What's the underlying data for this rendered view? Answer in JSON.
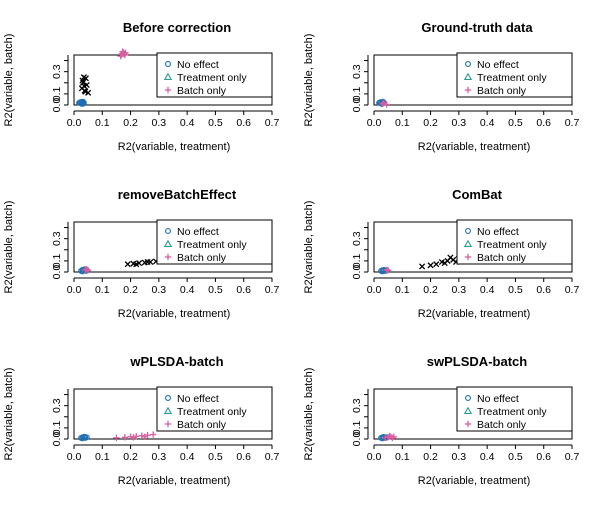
{
  "chart_data": [
    {
      "type": "scatter",
      "title": "Before correction",
      "xlabel": "R2(variable, treatment)",
      "ylabel": "R2(variable, batch)",
      "xlim": [
        0,
        0.7
      ],
      "ylim": [
        0,
        0.45
      ],
      "xticks": [
        "0.0",
        "0.1",
        "0.2",
        "0.3",
        "0.4",
        "0.5",
        "0.6",
        "0.7"
      ],
      "yticks": [
        "0.0",
        "0.1",
        "0.3"
      ],
      "legend": [
        "No effect",
        "Treatment only",
        "Batch only"
      ],
      "legend_position": "right",
      "series": [
        {
          "name": "No effect",
          "points": [
            [
              0.02,
              0.02
            ],
            [
              0.025,
              0.015
            ],
            [
              0.03,
              0.02
            ],
            [
              0.035,
              0.02
            ],
            [
              0.022,
              0.025
            ],
            [
              0.028,
              0.01
            ],
            [
              0.032,
              0.03
            ],
            [
              0.018,
              0.02
            ],
            [
              0.027,
              0.028
            ],
            [
              0.033,
              0.012
            ]
          ]
        },
        {
          "name": "Treatment only",
          "points": []
        },
        {
          "name": "Batch only",
          "points": [
            [
              0.17,
              0.46
            ],
            [
              0.175,
              0.47
            ],
            [
              0.18,
              0.45
            ],
            [
              0.165,
              0.44
            ],
            [
              0.172,
              0.48
            ],
            [
              0.178,
              0.46
            ],
            [
              0.168,
              0.455
            ],
            [
              0.182,
              0.47
            ]
          ]
        },
        {
          "name": "",
          "points": [
            [
              0.028,
              0.15
            ],
            [
              0.032,
              0.2
            ],
            [
              0.035,
              0.25
            ],
            [
              0.04,
              0.12
            ],
            [
              0.045,
              0.18
            ],
            [
              0.03,
              0.22
            ],
            [
              0.038,
              0.13
            ],
            [
              0.042,
              0.24
            ],
            [
              0.036,
              0.17
            ],
            [
              0.05,
              0.11
            ]
          ]
        }
      ]
    },
    {
      "type": "scatter",
      "title": "Ground-truth data",
      "xlabel": "R2(variable, treatment)",
      "ylabel": "R2(variable, batch)",
      "xlim": [
        0,
        0.7
      ],
      "ylim": [
        0,
        0.45
      ],
      "xticks": [
        "0.0",
        "0.1",
        "0.2",
        "0.3",
        "0.4",
        "0.5",
        "0.6",
        "0.7"
      ],
      "yticks": [
        "0.0",
        "0.1",
        "0.3"
      ],
      "legend": [
        "No effect",
        "Treatment only",
        "Batch only"
      ],
      "legend_position": "right",
      "series": [
        {
          "name": "No effect",
          "points": [
            [
              0.02,
              0.02
            ],
            [
              0.025,
              0.015
            ],
            [
              0.03,
              0.02
            ],
            [
              0.035,
              0.02
            ],
            [
              0.022,
              0.025
            ],
            [
              0.028,
              0.01
            ],
            [
              0.032,
              0.03
            ],
            [
              0.018,
              0.02
            ]
          ]
        },
        {
          "name": "Treatment only",
          "points": []
        },
        {
          "name": "Batch only",
          "points": [
            [
              0.03,
              0.01
            ],
            [
              0.035,
              0.02
            ],
            [
              0.045,
              0.005
            ]
          ]
        },
        {
          "name": "",
          "points": []
        }
      ]
    },
    {
      "type": "scatter",
      "title": "removeBatchEffect",
      "xlabel": "R2(variable, treatment)",
      "ylabel": "R2(variable, batch)",
      "xlim": [
        0,
        0.7
      ],
      "ylim": [
        0,
        0.45
      ],
      "xticks": [
        "0.0",
        "0.1",
        "0.2",
        "0.3",
        "0.4",
        "0.5",
        "0.6",
        "0.7"
      ],
      "yticks": [
        "0.0",
        "0.1",
        "0.3"
      ],
      "legend": [
        "No effect",
        "Treatment only",
        "Batch only"
      ],
      "legend_position": "right",
      "series": [
        {
          "name": "No effect",
          "points": [
            [
              0.025,
              0.01
            ],
            [
              0.03,
              0.02
            ],
            [
              0.035,
              0.015
            ],
            [
              0.04,
              0.02
            ],
            [
              0.045,
              0.015
            ],
            [
              0.03,
              0.005
            ],
            [
              0.038,
              0.025
            ],
            [
              0.042,
              0.01
            ]
          ]
        },
        {
          "name": "Treatment only",
          "points": []
        },
        {
          "name": "Batch only",
          "points": [
            [
              0.04,
              0.02
            ],
            [
              0.05,
              0.015
            ],
            [
              0.045,
              0.025
            ]
          ]
        },
        {
          "name": "",
          "points": [
            [
              0.19,
              0.07
            ],
            [
              0.21,
              0.075
            ],
            [
              0.23,
              0.08
            ],
            [
              0.25,
              0.085
            ],
            [
              0.27,
              0.09
            ],
            [
              0.29,
              0.095
            ],
            [
              0.31,
              0.1
            ],
            [
              0.33,
              0.11
            ],
            [
              0.22,
              0.07
            ],
            [
              0.26,
              0.09
            ]
          ]
        }
      ]
    },
    {
      "type": "scatter",
      "title": "ComBat",
      "xlabel": "R2(variable, treatment)",
      "ylabel": "R2(variable, batch)",
      "xlim": [
        0,
        0.7
      ],
      "ylim": [
        0,
        0.45
      ],
      "xticks": [
        "0.0",
        "0.1",
        "0.2",
        "0.3",
        "0.4",
        "0.5",
        "0.6",
        "0.7"
      ],
      "yticks": [
        "0.0",
        "0.1",
        "0.3"
      ],
      "legend": [
        "No effect",
        "Treatment only",
        "Batch only"
      ],
      "legend_position": "right",
      "series": [
        {
          "name": "No effect",
          "points": [
            [
              0.025,
              0.01
            ],
            [
              0.03,
              0.015
            ],
            [
              0.035,
              0.02
            ],
            [
              0.04,
              0.01
            ],
            [
              0.045,
              0.015
            ],
            [
              0.03,
              0.005
            ]
          ]
        },
        {
          "name": "Treatment only",
          "points": []
        },
        {
          "name": "Batch only",
          "points": [
            [
              0.045,
              0.02
            ],
            [
              0.05,
              0.015
            ]
          ]
        },
        {
          "name": "",
          "points": [
            [
              0.17,
              0.05
            ],
            [
              0.2,
              0.06
            ],
            [
              0.22,
              0.07
            ],
            [
              0.24,
              0.09
            ],
            [
              0.26,
              0.1
            ],
            [
              0.28,
              0.11
            ],
            [
              0.3,
              0.12
            ],
            [
              0.25,
              0.08
            ],
            [
              0.27,
              0.13
            ],
            [
              0.29,
              0.09
            ]
          ]
        }
      ]
    },
    {
      "type": "scatter",
      "title": "wPLSDA-batch",
      "xlabel": "R2(variable, treatment)",
      "ylabel": "R2(variable, batch)",
      "xlim": [
        0,
        0.7
      ],
      "ylim": [
        0,
        0.45
      ],
      "xticks": [
        "0.0",
        "0.1",
        "0.2",
        "0.3",
        "0.4",
        "0.5",
        "0.6",
        "0.7"
      ],
      "yticks": [
        "0.0",
        "0.1",
        "0.3"
      ],
      "legend": [
        "No effect",
        "Treatment only",
        "Batch only"
      ],
      "legend_position": "right",
      "series": [
        {
          "name": "No effect",
          "points": [
            [
              0.025,
              0.01
            ],
            [
              0.03,
              0.015
            ],
            [
              0.035,
              0.02
            ],
            [
              0.04,
              0.01
            ],
            [
              0.045,
              0.015
            ],
            [
              0.03,
              0.005
            ],
            [
              0.038,
              0.02
            ]
          ]
        },
        {
          "name": "Treatment only",
          "points": []
        },
        {
          "name": "Batch only",
          "points": [
            [
              0.15,
              0.01
            ],
            [
              0.18,
              0.015
            ],
            [
              0.2,
              0.02
            ],
            [
              0.22,
              0.025
            ],
            [
              0.24,
              0.03
            ],
            [
              0.26,
              0.035
            ],
            [
              0.28,
              0.04
            ],
            [
              0.21,
              0.015
            ],
            [
              0.25,
              0.02
            ]
          ]
        },
        {
          "name": "",
          "points": []
        }
      ]
    },
    {
      "type": "scatter",
      "title": "swPLSDA-batch",
      "xlabel": "R2(variable, treatment)",
      "ylabel": "R2(variable, batch)",
      "xlim": [
        0,
        0.7
      ],
      "ylim": [
        0,
        0.45
      ],
      "xticks": [
        "0.0",
        "0.1",
        "0.2",
        "0.3",
        "0.4",
        "0.5",
        "0.6",
        "0.7"
      ],
      "yticks": [
        "0.0",
        "0.1",
        "0.3"
      ],
      "legend": [
        "No effect",
        "Treatment only",
        "Batch only"
      ],
      "legend_position": "right",
      "series": [
        {
          "name": "No effect",
          "points": [
            [
              0.025,
              0.01
            ],
            [
              0.03,
              0.015
            ],
            [
              0.035,
              0.02
            ],
            [
              0.04,
              0.01
            ],
            [
              0.045,
              0.015
            ],
            [
              0.03,
              0.005
            ]
          ]
        },
        {
          "name": "Treatment only",
          "points": []
        },
        {
          "name": "Batch only",
          "points": [
            [
              0.04,
              0.01
            ],
            [
              0.05,
              0.015
            ],
            [
              0.06,
              0.02
            ],
            [
              0.065,
              0.01
            ],
            [
              0.07,
              0.02
            ],
            [
              0.055,
              0.025
            ]
          ]
        },
        {
          "name": "",
          "points": []
        }
      ]
    }
  ],
  "colors": {
    "no_effect": "#1f6fb2",
    "treatment_only": "#2a9d8f",
    "batch_only": "#d85fa0",
    "other": "#000000",
    "axis": "#000000"
  },
  "marker_icons": {
    "no_effect": "circle-marker",
    "treatment_only": "triangle-marker",
    "batch_only": "plus-marker",
    "other": "cross-marker"
  }
}
